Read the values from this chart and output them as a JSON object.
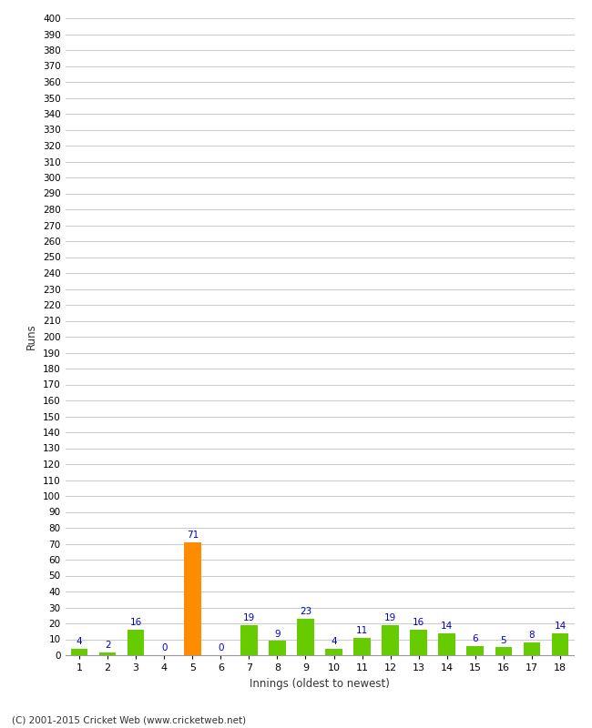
{
  "innings": [
    1,
    2,
    3,
    4,
    5,
    6,
    7,
    8,
    9,
    10,
    11,
    12,
    13,
    14,
    15,
    16,
    17,
    18
  ],
  "runs": [
    4,
    2,
    16,
    0,
    71,
    0,
    19,
    9,
    23,
    4,
    11,
    19,
    16,
    14,
    6,
    5,
    8,
    14
  ],
  "bar_colors": [
    "#66cc00",
    "#66cc00",
    "#66cc00",
    "#66cc00",
    "#ff8c00",
    "#66cc00",
    "#66cc00",
    "#66cc00",
    "#66cc00",
    "#66cc00",
    "#66cc00",
    "#66cc00",
    "#66cc00",
    "#66cc00",
    "#66cc00",
    "#66cc00",
    "#66cc00",
    "#66cc00"
  ],
  "ylabel": "Runs",
  "xlabel": "Innings (oldest to newest)",
  "ylim": [
    0,
    400
  ],
  "yticks": [
    0,
    10,
    20,
    30,
    40,
    50,
    60,
    70,
    80,
    90,
    100,
    110,
    120,
    130,
    140,
    150,
    160,
    170,
    180,
    190,
    200,
    210,
    220,
    230,
    240,
    250,
    260,
    270,
    280,
    290,
    300,
    310,
    320,
    330,
    340,
    350,
    360,
    370,
    380,
    390,
    400
  ],
  "label_color": "#0000cc",
  "background_color": "#ffffff",
  "grid_color": "#cccccc",
  "footer": "(C) 2001-2015 Cricket Web (www.cricketweb.net)"
}
